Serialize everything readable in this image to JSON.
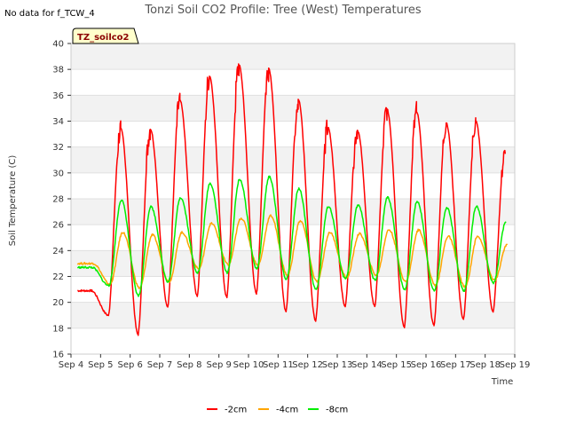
{
  "header": {
    "no_data_text": "No data for f_TCW_4",
    "title": "Tonzi Soil CO2 Profile: Tree (West) Temperatures"
  },
  "legend_tag": "TZ_soilco2",
  "chart_data": {
    "type": "line",
    "title": "Tonzi Soil CO2 Profile: Tree (West) Temperatures",
    "xlabel": "Time",
    "ylabel": "Soil Temperature (C)",
    "ylim": [
      16,
      40
    ],
    "yticks": [
      16,
      18,
      20,
      22,
      24,
      26,
      28,
      30,
      32,
      34,
      36,
      38,
      40
    ],
    "xlim": [
      4,
      19
    ],
    "xticks": [
      {
        "pos": 4,
        "label": "Sep 4"
      },
      {
        "pos": 5,
        "label": "Sep 5"
      },
      {
        "pos": 6,
        "label": "Sep 6"
      },
      {
        "pos": 7,
        "label": "Sep 7"
      },
      {
        "pos": 8,
        "label": "Sep 8"
      },
      {
        "pos": 9,
        "label": "Sep 9"
      },
      {
        "pos": 10,
        "label": "Sep 10"
      },
      {
        "pos": 11,
        "label": "Sep 11"
      },
      {
        "pos": 12,
        "label": "Sep 12"
      },
      {
        "pos": 13,
        "label": "Sep 13"
      },
      {
        "pos": 14,
        "label": "Sep 14"
      },
      {
        "pos": 15,
        "label": "Sep 15"
      },
      {
        "pos": 16,
        "label": "Sep 16"
      },
      {
        "pos": 17,
        "label": "Sep 17"
      },
      {
        "pos": 18,
        "label": "Sep 18"
      },
      {
        "pos": 19,
        "label": "Sep 19"
      }
    ],
    "day_extremes": {
      "days": [
        4,
        5,
        6,
        7,
        8,
        9,
        10,
        11,
        12,
        13,
        14,
        15,
        16,
        17,
        18
      ],
      "series": [
        {
          "name": "-2cm",
          "color": "#ff0000",
          "max": [
            20.9,
            33.4,
            33.4,
            35.6,
            37.5,
            38.3,
            38.1,
            35.7,
            33.5,
            33.3,
            34.9,
            34.7,
            33.9,
            34.0,
            31.8
          ],
          "min": [
            19.2,
            19.0,
            17.5,
            19.7,
            20.5,
            20.4,
            20.7,
            19.3,
            18.6,
            19.7,
            19.7,
            18.1,
            18.2,
            18.7,
            19.3
          ]
        },
        {
          "name": "-4cm",
          "color": "#ffa500",
          "max": [
            23.0,
            25.4,
            25.2,
            25.4,
            26.1,
            26.5,
            26.7,
            26.3,
            25.4,
            25.3,
            25.6,
            25.6,
            25.1,
            25.1,
            24.5
          ],
          "min": [
            21.6,
            21.4,
            21.1,
            21.6,
            22.6,
            22.9,
            22.9,
            22.1,
            21.6,
            21.9,
            22.1,
            21.6,
            21.3,
            21.2,
            21.7
          ]
        },
        {
          "name": "-8cm",
          "color": "#00ee00",
          "max": [
            22.7,
            27.9,
            27.4,
            28.1,
            29.2,
            29.5,
            29.7,
            28.8,
            27.4,
            27.5,
            28.1,
            27.8,
            27.3,
            27.4,
            26.2
          ],
          "min": [
            22.0,
            21.3,
            20.5,
            21.6,
            22.3,
            22.3,
            22.6,
            21.8,
            21.0,
            21.8,
            21.7,
            21.0,
            20.9,
            20.9,
            21.5
          ]
        }
      ]
    },
    "legend": [
      {
        "name": "-2cm",
        "color": "#ff0000"
      },
      {
        "name": "-4cm",
        "color": "#ffa500"
      },
      {
        "name": "-8cm",
        "color": "#00ee00"
      }
    ]
  }
}
